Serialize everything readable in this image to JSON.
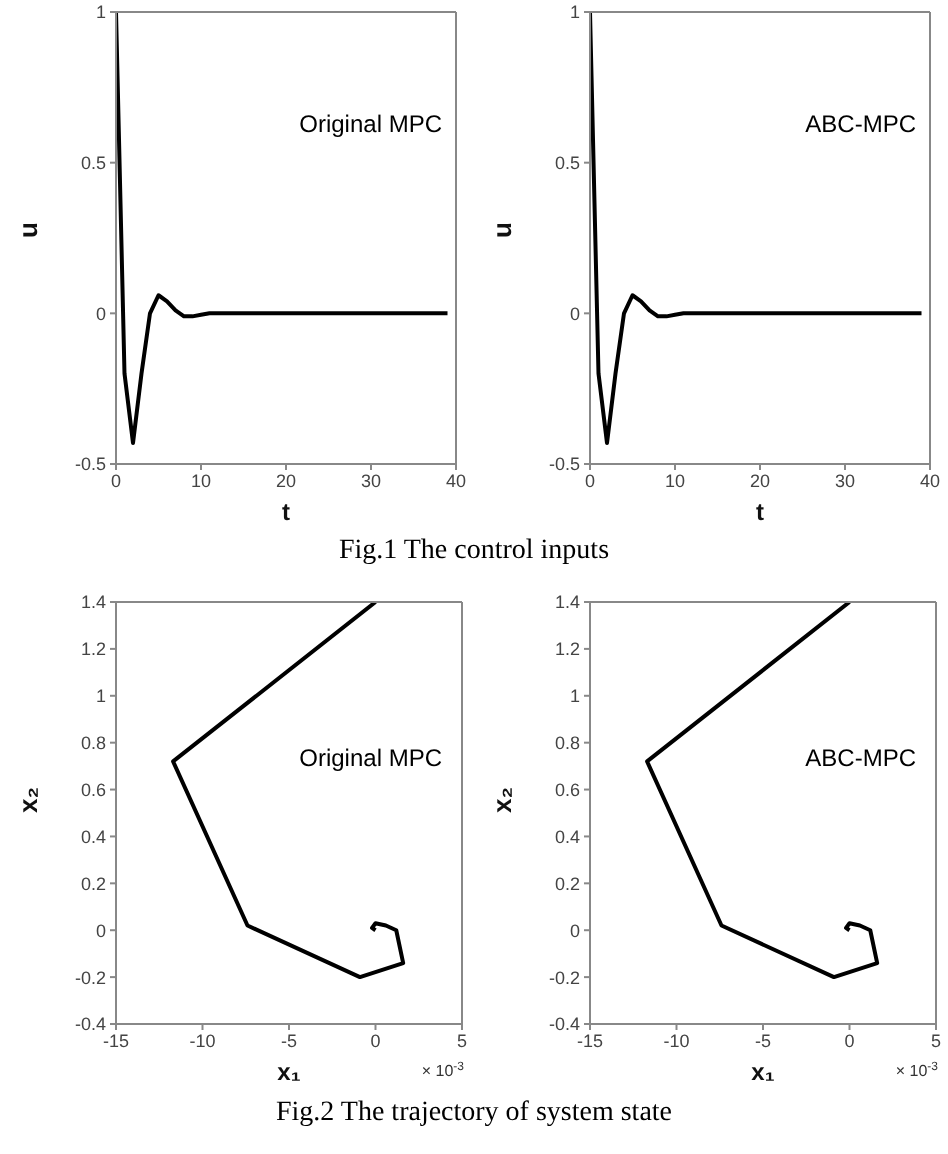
{
  "chart_data": [
    {
      "type": "line",
      "xlabel": "t",
      "ylabel": "u",
      "xlim": [
        0,
        40
      ],
      "xticks": [
        0,
        10,
        20,
        30,
        40
      ],
      "ylim": [
        -0.5,
        1
      ],
      "yticks": [
        -0.5,
        0,
        0.5,
        1
      ],
      "legend": false,
      "series": [
        {
          "name": "Original MPC",
          "color": "#000000",
          "x": [
            0,
            1,
            2,
            3,
            4,
            5,
            6,
            7,
            8,
            9,
            10,
            11,
            12,
            39
          ],
          "values": [
            1,
            -0.2,
            -0.43,
            -0.2,
            0,
            0.06,
            0.04,
            0.01,
            -0.01,
            -0.01,
            -0.005,
            0,
            0,
            0
          ]
        }
      ]
    },
    {
      "type": "line",
      "xlabel": "t",
      "ylabel": "u",
      "xlim": [
        0,
        40
      ],
      "xticks": [
        0,
        10,
        20,
        30,
        40
      ],
      "ylim": [
        -0.5,
        1
      ],
      "yticks": [
        -0.5,
        0,
        0.5,
        1
      ],
      "legend": false,
      "series": [
        {
          "name": "ABC-MPC",
          "color": "#000000",
          "x": [
            0,
            1,
            2,
            3,
            4,
            5,
            6,
            7,
            8,
            9,
            10,
            11,
            12,
            39
          ],
          "values": [
            1,
            -0.2,
            -0.43,
            -0.2,
            0,
            0.06,
            0.04,
            0.01,
            -0.01,
            -0.01,
            -0.005,
            0,
            0,
            0
          ]
        }
      ]
    },
    {
      "type": "other",
      "title": "Fig.1 The control inputs"
    },
    {
      "type": "line",
      "xlabel": "x₁",
      "ylabel": "x₂",
      "xlim": [
        -15,
        5
      ],
      "xticks": [
        -15,
        -10,
        -5,
        0,
        5
      ],
      "ylim": [
        -0.4,
        1.4
      ],
      "yticks": [
        -0.4,
        -0.2,
        0,
        0.2,
        0.4,
        0.6,
        0.8,
        1,
        1.2,
        1.4
      ],
      "legend": false,
      "annotations": [
        "× 10$^{-3}$"
      ],
      "series": [
        {
          "name": "Original MPC",
          "color": "#000000",
          "x": [
            0,
            -11.7,
            -7.4,
            -0.9,
            1.6,
            1.2,
            0.6,
            0,
            -0.2,
            0
          ],
          "values": [
            1.4,
            0.72,
            0.02,
            -0.2,
            -0.14,
            0,
            0.02,
            0.03,
            0.01,
            0
          ]
        }
      ]
    },
    {
      "type": "line",
      "xlabel": "x₁",
      "ylabel": "x₂",
      "xlim": [
        -15,
        5
      ],
      "xticks": [
        -15,
        -10,
        -5,
        0,
        5
      ],
      "ylim": [
        -0.4,
        1.4
      ],
      "yticks": [
        -0.4,
        -0.2,
        0,
        0.2,
        0.4,
        0.6,
        0.8,
        1,
        1.2,
        1.4
      ],
      "legend": false,
      "annotations": [
        "× 10$^{-3}$"
      ],
      "series": [
        {
          "name": "ABC-MPC",
          "color": "#000000",
          "x": [
            0,
            -11.7,
            -7.4,
            -0.9,
            1.6,
            1.2,
            0.6,
            0,
            -0.2,
            0
          ],
          "values": [
            1.4,
            0.72,
            0.02,
            -0.2,
            -0.14,
            0,
            0.02,
            0.03,
            0.01,
            0
          ]
        }
      ]
    },
    {
      "type": "other",
      "title": "Fig.2 The trajectory of system state"
    }
  ]
}
